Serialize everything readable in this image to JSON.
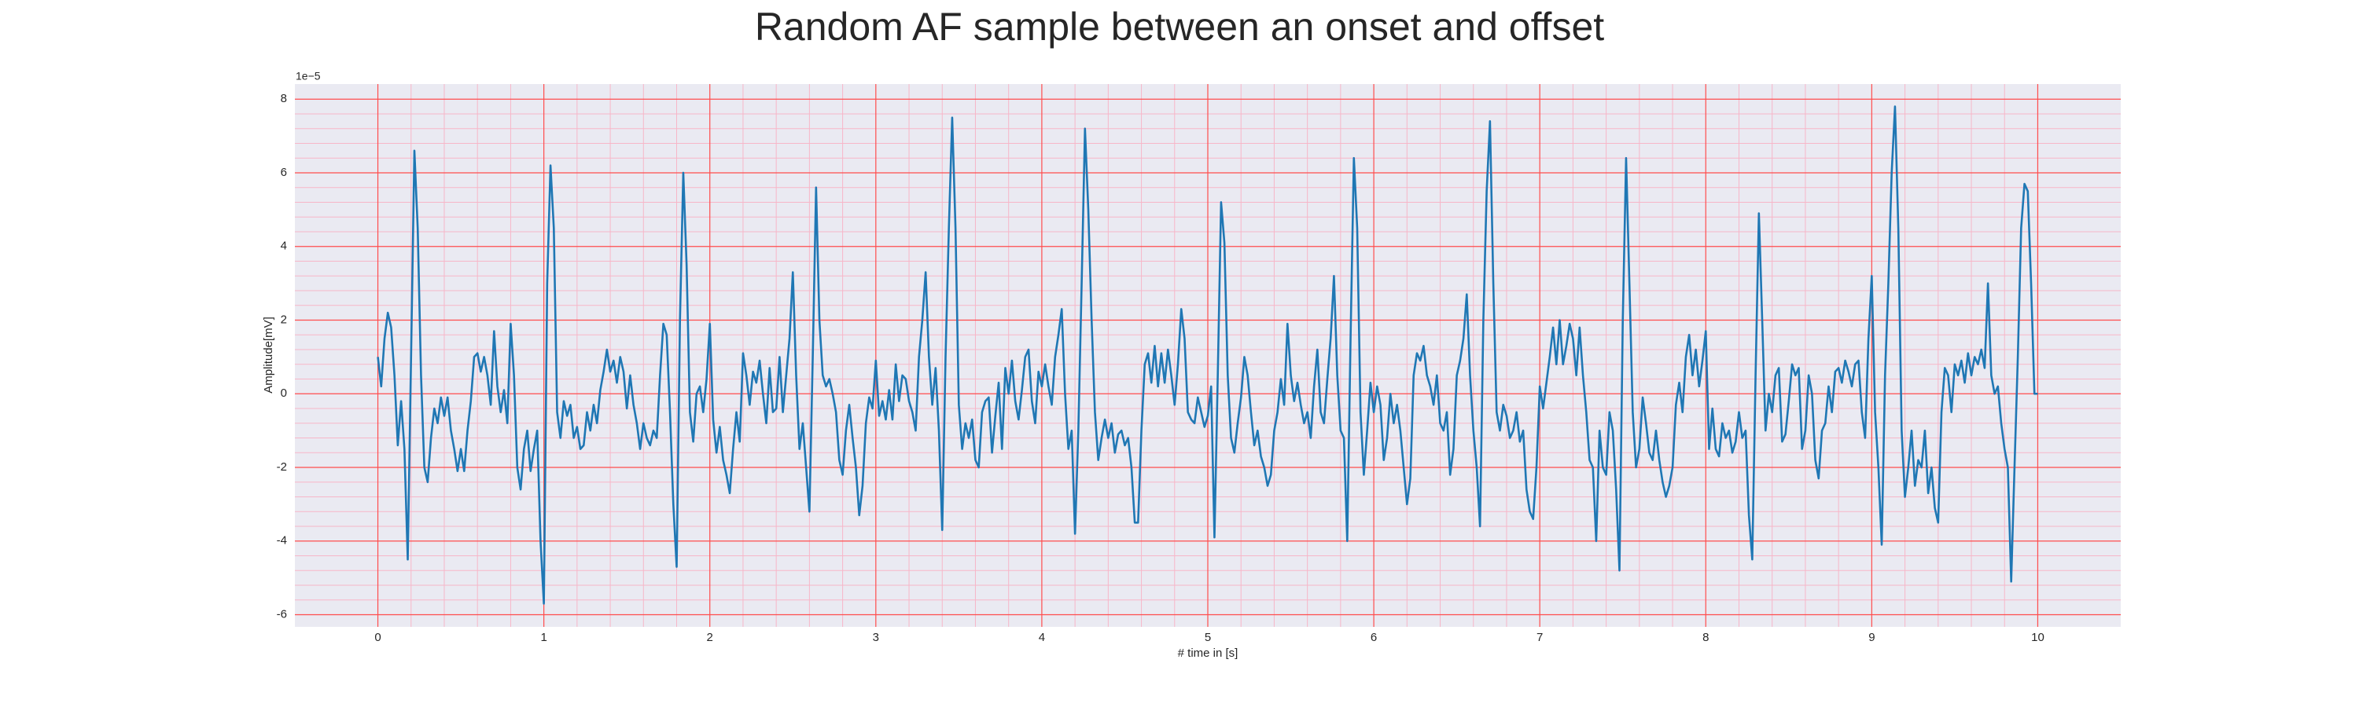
{
  "chart_data": {
    "type": "line",
    "title": "Random AF sample between an onset and offset",
    "xlabel": "# time in [s]",
    "ylabel": "Amplitude[mV]",
    "y_offset_label": "1e−5",
    "color": "#1f77b4",
    "grid": true,
    "minor_grid": true,
    "grid_color": "#ff4d4d",
    "minor_grid_color": "#f7b6c8",
    "background": "#eaeaf2",
    "xlim": [
      -0.5,
      10.5
    ],
    "ylim": [
      -6.33,
      8.41
    ],
    "xticks": [
      0,
      1,
      2,
      3,
      4,
      5,
      6,
      7,
      8,
      9,
      10
    ],
    "yticks": [
      -6,
      -4,
      -2,
      0,
      2,
      4,
      6,
      8
    ],
    "x": [
      0,
      0.02,
      0.04,
      0.06,
      0.08,
      0.1,
      0.12,
      0.14,
      0.16,
      0.18,
      0.2,
      0.22,
      0.24,
      0.26,
      0.28,
      0.3,
      0.32,
      0.34,
      0.36,
      0.38,
      0.4,
      0.42,
      0.44,
      0.46,
      0.48,
      0.5,
      0.52,
      0.54,
      0.56,
      0.58,
      0.6,
      0.62,
      0.64,
      0.66,
      0.68,
      0.7,
      0.72,
      0.74,
      0.76,
      0.78,
      0.8,
      0.82,
      0.84,
      0.86,
      0.88,
      0.9,
      0.92,
      0.94,
      0.96,
      0.98,
      1,
      1.02,
      1.04,
      1.06,
      1.08,
      1.1,
      1.12,
      1.14,
      1.16,
      1.18,
      1.2,
      1.22,
      1.24,
      1.26,
      1.28,
      1.3,
      1.32,
      1.34,
      1.36,
      1.38,
      1.4,
      1.42,
      1.44,
      1.46,
      1.48,
      1.5,
      1.52,
      1.54,
      1.56,
      1.58,
      1.6,
      1.62,
      1.64,
      1.66,
      1.68,
      1.7,
      1.72,
      1.74,
      1.76,
      1.78,
      1.8,
      1.82,
      1.84,
      1.86,
      1.88,
      1.9,
      1.92,
      1.94,
      1.96,
      1.98,
      2,
      2.02,
      2.04,
      2.06,
      2.08,
      2.1,
      2.12,
      2.14,
      2.16,
      2.18,
      2.2,
      2.22,
      2.24,
      2.26,
      2.28,
      2.3,
      2.32,
      2.34,
      2.36,
      2.38,
      2.4,
      2.42,
      2.44,
      2.46,
      2.48,
      2.5,
      2.52,
      2.54,
      2.56,
      2.58,
      2.6,
      2.62,
      2.64,
      2.66,
      2.68,
      2.7,
      2.72,
      2.74,
      2.76,
      2.78,
      2.8,
      2.82,
      2.84,
      2.86,
      2.88,
      2.9,
      2.92,
      2.94,
      2.96,
      2.98,
      3,
      3.02,
      3.04,
      3.06,
      3.08,
      3.1,
      3.12,
      3.14,
      3.16,
      3.18,
      3.2,
      3.22,
      3.24,
      3.26,
      3.28,
      3.3,
      3.32,
      3.34,
      3.36,
      3.38,
      3.4,
      3.42,
      3.44,
      3.46,
      3.48,
      3.5,
      3.52,
      3.54,
      3.56,
      3.58,
      3.6,
      3.62,
      3.64,
      3.66,
      3.68,
      3.7,
      3.72,
      3.74,
      3.76,
      3.78,
      3.8,
      3.82,
      3.84,
      3.86,
      3.88,
      3.9,
      3.92,
      3.94,
      3.96,
      3.98,
      4,
      4.02,
      4.04,
      4.06,
      4.08,
      4.1,
      4.12,
      4.14,
      4.16,
      4.18,
      4.2,
      4.22,
      4.24,
      4.26,
      4.28,
      4.3,
      4.32,
      4.34,
      4.36,
      4.38,
      4.4,
      4.42,
      4.44,
      4.46,
      4.48,
      4.5,
      4.52,
      4.54,
      4.56,
      4.58,
      4.6,
      4.62,
      4.64,
      4.66,
      4.68,
      4.7,
      4.72,
      4.74,
      4.76,
      4.78,
      4.8,
      4.82,
      4.84,
      4.86,
      4.88,
      4.9,
      4.92,
      4.94,
      4.96,
      4.98,
      5,
      5.02,
      5.04,
      5.06,
      5.08,
      5.1,
      5.12,
      5.14,
      5.16,
      5.18,
      5.2,
      5.22,
      5.24,
      5.26,
      5.28,
      5.3,
      5.32,
      5.34,
      5.36,
      5.38,
      5.4,
      5.42,
      5.44,
      5.46,
      5.48,
      5.5,
      5.52,
      5.54,
      5.56,
      5.58,
      5.6,
      5.62,
      5.64,
      5.66,
      5.68,
      5.7,
      5.72,
      5.74,
      5.76,
      5.78,
      5.8,
      5.82,
      5.84,
      5.86,
      5.88,
      5.9,
      5.92,
      5.94,
      5.96,
      5.98,
      6,
      6.02,
      6.04,
      6.06,
      6.08,
      6.1,
      6.12,
      6.14,
      6.16,
      6.18,
      6.2,
      6.22,
      6.24,
      6.26,
      6.28,
      6.3,
      6.32,
      6.34,
      6.36,
      6.38,
      6.4,
      6.42,
      6.44,
      6.46,
      6.48,
      6.5,
      6.52,
      6.54,
      6.56,
      6.58,
      6.6,
      6.62,
      6.64,
      6.66,
      6.68,
      6.7,
      6.72,
      6.74,
      6.76,
      6.78,
      6.8,
      6.82,
      6.84,
      6.86,
      6.88,
      6.9,
      6.92,
      6.94,
      6.96,
      6.98,
      7,
      7.02,
      7.04,
      7.06,
      7.08,
      7.1,
      7.12,
      7.14,
      7.16,
      7.18,
      7.2,
      7.22,
      7.24,
      7.26,
      7.28,
      7.3,
      7.32,
      7.34,
      7.36,
      7.38,
      7.4,
      7.42,
      7.44,
      7.46,
      7.48,
      7.5,
      7.52,
      7.54,
      7.56,
      7.58,
      7.6,
      7.62,
      7.64,
      7.66,
      7.68,
      7.7,
      7.72,
      7.74,
      7.76,
      7.78,
      7.8,
      7.82,
      7.84,
      7.86,
      7.88,
      7.9,
      7.92,
      7.94,
      7.96,
      7.98,
      8,
      8.02,
      8.04,
      8.06,
      8.08,
      8.1,
      8.12,
      8.14,
      8.16,
      8.18,
      8.2,
      8.22,
      8.24,
      8.26,
      8.28,
      8.3,
      8.32,
      8.34,
      8.36,
      8.38,
      8.4,
      8.42,
      8.44,
      8.46,
      8.48,
      8.5,
      8.52,
      8.54,
      8.56,
      8.58,
      8.6,
      8.62,
      8.64,
      8.66,
      8.68,
      8.7,
      8.72,
      8.74,
      8.76,
      8.78,
      8.8,
      8.82,
      8.84,
      8.86,
      8.88,
      8.9,
      8.92,
      8.94,
      8.96,
      8.98,
      9,
      9.02,
      9.04,
      9.06,
      9.08,
      9.1,
      9.12,
      9.14,
      9.16,
      9.18,
      9.2,
      9.22,
      9.24,
      9.26,
      9.28,
      9.3,
      9.32,
      9.34,
      9.36,
      9.38,
      9.4,
      9.42,
      9.44,
      9.46,
      9.48,
      9.5,
      9.52,
      9.54,
      9.56,
      9.58,
      9.6,
      9.62,
      9.64,
      9.66,
      9.68,
      9.7,
      9.72,
      9.74,
      9.76,
      9.78,
      9.8,
      9.82,
      9.84,
      9.86,
      9.88,
      9.9,
      9.92,
      9.94,
      9.96,
      9.98,
      10
    ],
    "values": [
      1.0,
      0.2,
      1.5,
      2.2,
      1.8,
      0.5,
      -1.4,
      -0.2,
      -1.5,
      -4.5,
      1.0,
      6.6,
      4.5,
      0.5,
      -2.0,
      -2.4,
      -1.2,
      -0.4,
      -0.8,
      -0.1,
      -0.6,
      -0.1,
      -1.0,
      -1.5,
      -2.1,
      -1.5,
      -2.1,
      -1.0,
      -0.2,
      1.0,
      1.1,
      0.6,
      1.0,
      0.5,
      -0.3,
      1.7,
      0.2,
      -0.5,
      0.1,
      -0.8,
      1.9,
      0.5,
      -2.0,
      -2.6,
      -1.5,
      -1.0,
      -2.1,
      -1.5,
      -1.0,
      -4.0,
      -5.7,
      3.0,
      6.2,
      4.5,
      -0.5,
      -1.2,
      -0.2,
      -0.6,
      -0.3,
      -1.2,
      -0.9,
      -1.5,
      -1.4,
      -0.5,
      -1.0,
      -0.3,
      -0.8,
      0.1,
      0.6,
      1.2,
      0.6,
      0.9,
      0.3,
      1.0,
      0.6,
      -0.4,
      0.5,
      -0.3,
      -0.8,
      -1.5,
      -0.8,
      -1.2,
      -1.4,
      -1.0,
      -1.2,
      0.5,
      1.9,
      1.6,
      -0.5,
      -3.0,
      -4.7,
      2.0,
      6.0,
      3.5,
      -0.5,
      -1.3,
      0.0,
      0.2,
      -0.5,
      0.4,
      1.9,
      -0.7,
      -1.6,
      -0.9,
      -1.8,
      -2.2,
      -2.7,
      -1.5,
      -0.5,
      -1.3,
      1.1,
      0.5,
      -0.3,
      0.6,
      0.3,
      0.9,
      0.0,
      -0.8,
      0.7,
      -0.5,
      -0.4,
      1.0,
      -0.5,
      0.5,
      1.5,
      3.3,
      0.5,
      -1.5,
      -0.8,
      -2.0,
      -3.2,
      1.0,
      5.6,
      2.0,
      0.5,
      0.2,
      0.4,
      0.0,
      -0.5,
      -1.8,
      -2.2,
      -1.0,
      -0.3,
      -1.2,
      -2.0,
      -3.3,
      -2.5,
      -0.8,
      -0.1,
      -0.4,
      0.9,
      -0.6,
      -0.2,
      -0.7,
      0.1,
      -0.7,
      0.8,
      -0.2,
      0.5,
      0.4,
      -0.2,
      -0.5,
      -1.0,
      1.0,
      2.0,
      3.3,
      1.0,
      -0.3,
      0.7,
      -1.0,
      -3.7,
      1.0,
      4.5,
      7.5,
      4.5,
      -0.3,
      -1.5,
      -0.8,
      -1.2,
      -0.7,
      -1.8,
      -2.0,
      -0.5,
      -0.2,
      -0.1,
      -1.6,
      -0.6,
      0.3,
      -1.5,
      0.7,
      0.0,
      0.9,
      -0.2,
      -0.7,
      0.1,
      1.0,
      1.2,
      -0.2,
      -0.8,
      0.6,
      0.2,
      0.8,
      0.2,
      -0.3,
      1.0,
      1.6,
      2.3,
      0.0,
      -1.5,
      -1.0,
      -3.8,
      -1.0,
      3.0,
      7.2,
      5.0,
      2.0,
      -0.5,
      -1.8,
      -1.2,
      -0.7,
      -1.2,
      -0.8,
      -1.6,
      -1.1,
      -1.0,
      -1.4,
      -1.2,
      -2.0,
      -3.5,
      -3.5,
      -1.0,
      0.8,
      1.1,
      0.3,
      1.3,
      0.2,
      1.1,
      0.3,
      1.2,
      0.5,
      -0.3,
      0.8,
      2.3,
      1.5,
      -0.5,
      -0.7,
      -0.8,
      -0.1,
      -0.5,
      -0.9,
      -0.6,
      0.2,
      -3.9,
      0.5,
      5.2,
      4.1,
      0.5,
      -1.2,
      -1.6,
      -0.8,
      -0.1,
      1.0,
      0.5,
      -0.5,
      -1.4,
      -1.0,
      -1.7,
      -2.0,
      -2.5,
      -2.2,
      -1.0,
      -0.5,
      0.4,
      -0.3,
      1.9,
      0.5,
      -0.2,
      0.3,
      -0.3,
      -0.8,
      -0.5,
      -1.2,
      0.2,
      1.2,
      -0.5,
      -0.8,
      0.4,
      1.5,
      3.2,
      0.5,
      -1.0,
      -1.2,
      -4.0,
      1.5,
      6.4,
      4.5,
      -0.5,
      -2.2,
      -1.0,
      0.3,
      -0.5,
      0.2,
      -0.3,
      -1.8,
      -1.2,
      0.0,
      -0.8,
      -0.3,
      -1.0,
      -2.0,
      -3.0,
      -2.3,
      0.5,
      1.1,
      0.9,
      1.3,
      0.5,
      0.2,
      -0.3,
      0.5,
      -0.8,
      -1.0,
      -0.5,
      -2.2,
      -1.5,
      0.5,
      0.9,
      1.5,
      2.7,
      0.5,
      -1.0,
      -2.0,
      -3.6,
      2.0,
      5.5,
      7.4,
      3.0,
      -0.5,
      -1.0,
      -0.3,
      -0.6,
      -1.2,
      -1.0,
      -0.5,
      -1.3,
      -1.0,
      -2.6,
      -3.2,
      -3.4,
      -2.0,
      0.2,
      -0.4,
      0.3,
      1.0,
      1.8,
      0.8,
      2.0,
      0.8,
      1.3,
      1.9,
      1.5,
      0.5,
      1.8,
      0.5,
      -0.5,
      -1.8,
      -2.0,
      -4.0,
      -1.0,
      -2.0,
      -2.2,
      -0.5,
      -1.0,
      -2.6,
      -4.8,
      2.0,
      6.4,
      3.0,
      -0.5,
      -2.0,
      -1.5,
      -0.1,
      -0.8,
      -1.6,
      -1.8,
      -1.0,
      -1.8,
      -2.4,
      -2.8,
      -2.5,
      -2.0,
      -0.3,
      0.3,
      -0.5,
      1.0,
      1.6,
      0.5,
      1.2,
      0.2,
      0.9,
      1.7,
      -1.5,
      -0.4,
      -1.5,
      -1.7,
      -0.8,
      -1.2,
      -1.0,
      -1.6,
      -1.3,
      -0.5,
      -1.2,
      -1.0,
      -3.3,
      -4.5,
      0.5,
      4.9,
      2.0,
      -1.0,
      0.0,
      -0.5,
      0.5,
      0.7,
      -1.3,
      -1.1,
      -0.2,
      0.8,
      0.5,
      0.7,
      -1.5,
      -1.0,
      0.5,
      0.0,
      -1.8,
      -2.3,
      -1.0,
      -0.8,
      0.2,
      -0.5,
      0.6,
      0.7,
      0.3,
      0.9,
      0.6,
      0.2,
      0.8,
      0.9,
      -0.5,
      -1.2,
      1.5,
      3.2,
      -0.5,
      -2.0,
      -4.1,
      0.5,
      3.0,
      6.0,
      7.8,
      4.5,
      -1.0,
      -2.8,
      -2.0,
      -1.0,
      -2.5,
      -1.8,
      -2.0,
      -1.0,
      -2.7,
      -2.0,
      -3.1,
      -3.5,
      -0.5,
      0.7,
      0.5,
      -0.5,
      0.8,
      0.5,
      0.9,
      0.3,
      1.1,
      0.5,
      1.0,
      0.8,
      1.2,
      0.7,
      3.0,
      0.5,
      0.0,
      0.2,
      -0.8,
      -1.5,
      -2.0,
      -5.1,
      -2.0,
      1.0,
      4.5,
      5.7,
      5.5,
      3.0,
      0.0,
      0.0
    ]
  }
}
